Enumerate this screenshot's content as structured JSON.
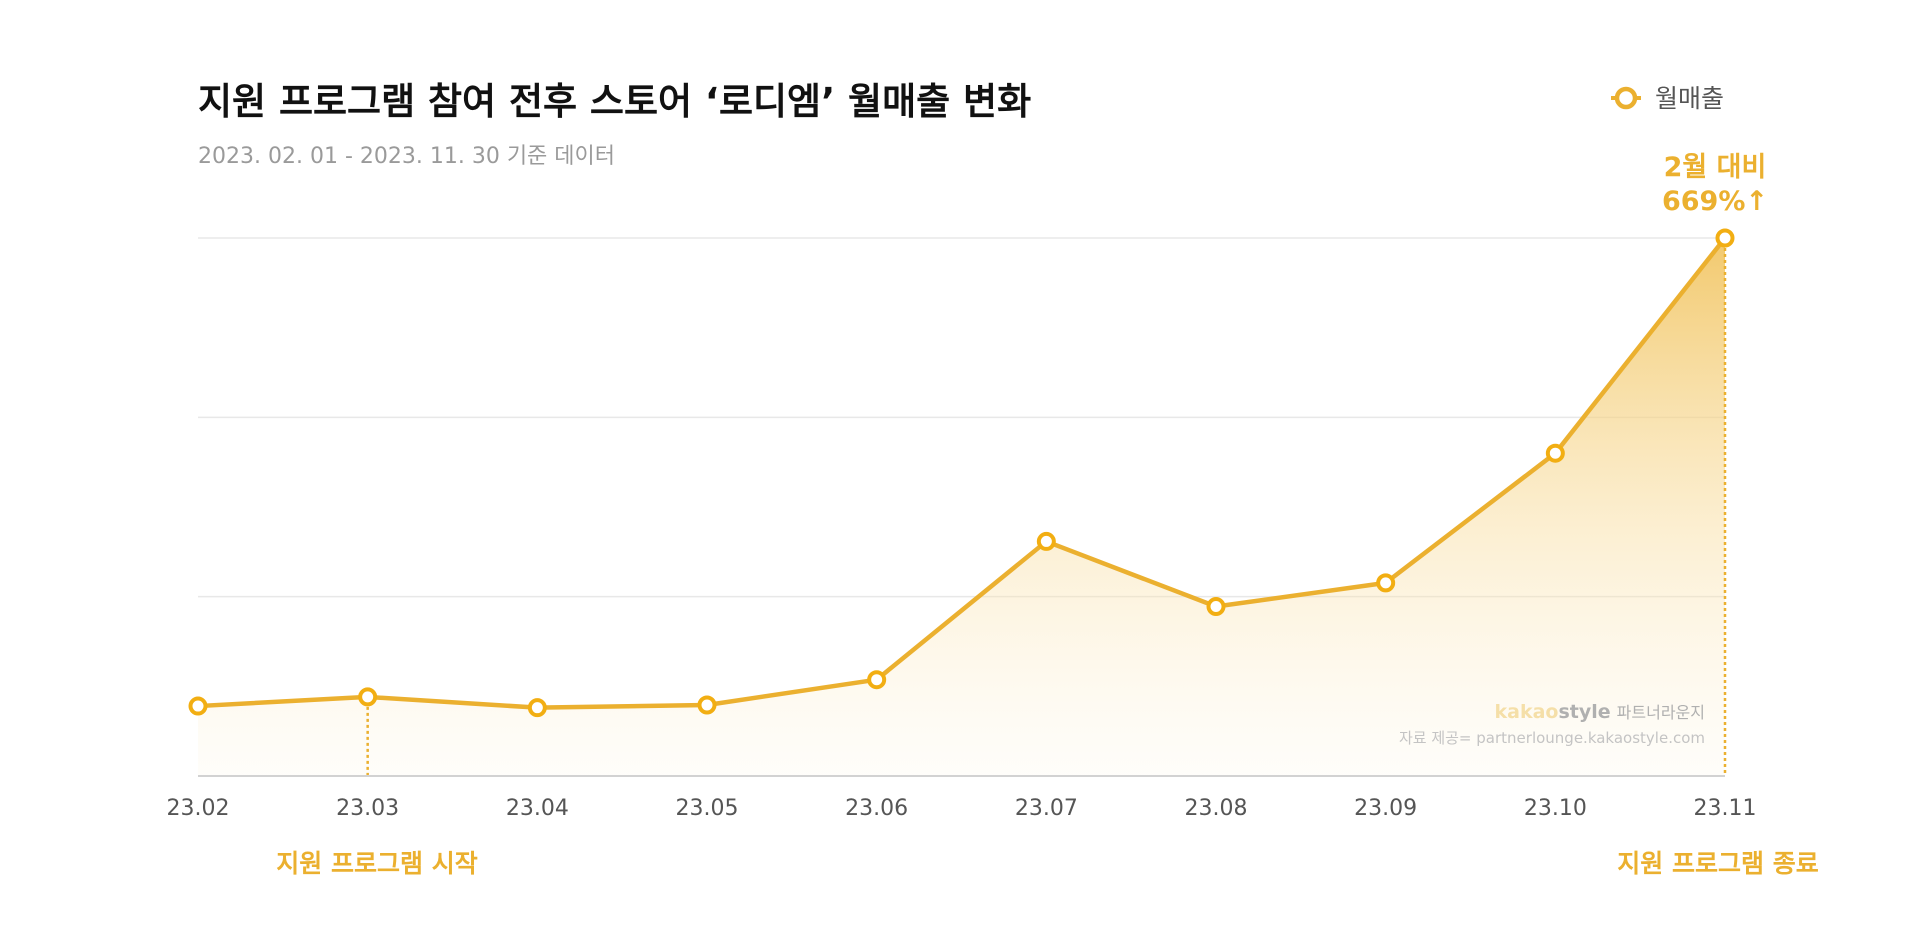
{
  "chart_data": {
    "type": "area",
    "title": "지원 프로그램 참여 전후 스토어 ‘로디엠’ 월매출 변화",
    "subtitle": "2023. 02. 01 - 2023. 11. 30 기준 데이터",
    "categories": [
      "23.02",
      "23.03",
      "23.04",
      "23.05",
      "23.06",
      "23.07",
      "23.08",
      "23.09",
      "23.10",
      "23.11"
    ],
    "series": [
      {
        "name": "월매출",
        "values": [
          1.3,
          1.47,
          1.27,
          1.32,
          1.79,
          4.36,
          3.15,
          3.59,
          6.0,
          10.0
        ]
      }
    ],
    "ylim": [
      0,
      10
    ],
    "y_axis_labels": "none",
    "grid": true,
    "legend_position": "top-right",
    "colors": {
      "line": "#EBB02F",
      "fill_top": "#F1C460",
      "grid": "#e8e8e8",
      "axis": "#d2d2d2"
    },
    "annotations": {
      "peak_line1": "2월 대비",
      "peak_line2": "669%↑",
      "start_label": "지원 프로그램 시작",
      "start_category": "23.03",
      "end_label": "지원 프로그램 종료",
      "end_category": "23.11"
    },
    "watermark": {
      "brand_light": "kakao",
      "brand_bold": "style",
      "brand_suffix": "파트너라운지",
      "source": "자료 제공= partnerlounge.kakaostyle.com"
    }
  }
}
